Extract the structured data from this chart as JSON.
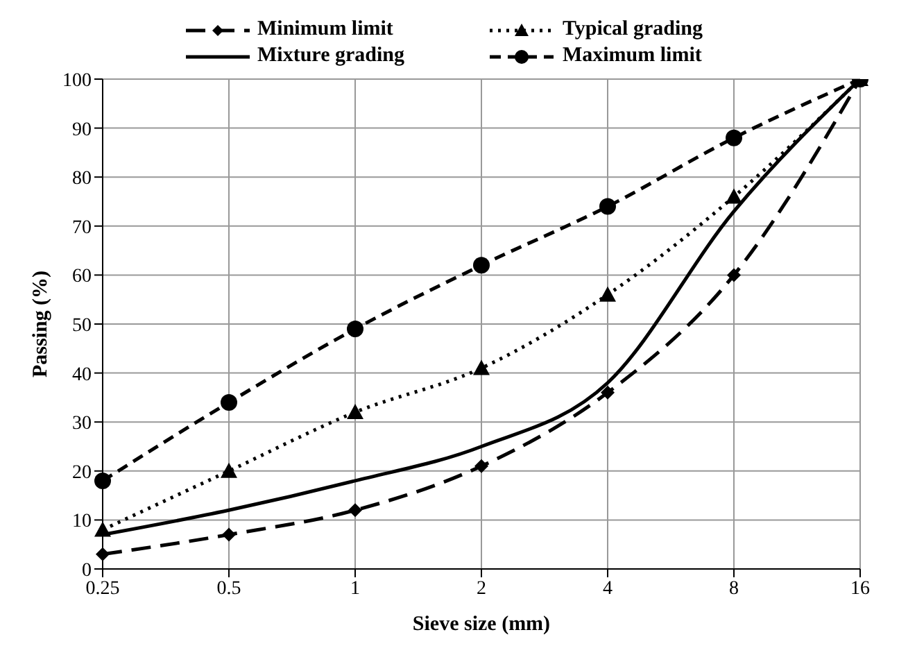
{
  "chart_data": {
    "type": "line",
    "xlabel": "Sieve size (mm)",
    "ylabel": "Passing (%)",
    "categories": [
      "0.25",
      "0.5",
      "1",
      "2",
      "4",
      "8",
      "16"
    ],
    "series": [
      {
        "name": "Minimum limit",
        "color": "#000000",
        "marker": "diamond",
        "line_style": "dashed",
        "values": [
          3,
          7,
          12,
          21,
          36,
          60,
          100
        ]
      },
      {
        "name": "Typical grading",
        "color": "#000000",
        "marker": "triangle",
        "line_style": "dotted",
        "values": [
          8,
          20,
          32,
          41,
          56,
          76,
          100
        ]
      },
      {
        "name": "Mixture grading",
        "color": "#000000",
        "marker": "none",
        "line_style": "solid",
        "values": [
          7,
          12,
          18,
          25,
          38,
          73,
          100
        ]
      },
      {
        "name": "Maximum limit",
        "color": "#000000",
        "marker": "circle",
        "line_style": "dashed",
        "values": [
          18,
          34,
          49,
          62,
          74,
          88,
          100
        ]
      }
    ],
    "ylim": [
      0,
      100
    ],
    "yticks": [
      0,
      10,
      20,
      30,
      40,
      50,
      60,
      70,
      80,
      90,
      100
    ],
    "grid": true,
    "legend": "top"
  }
}
